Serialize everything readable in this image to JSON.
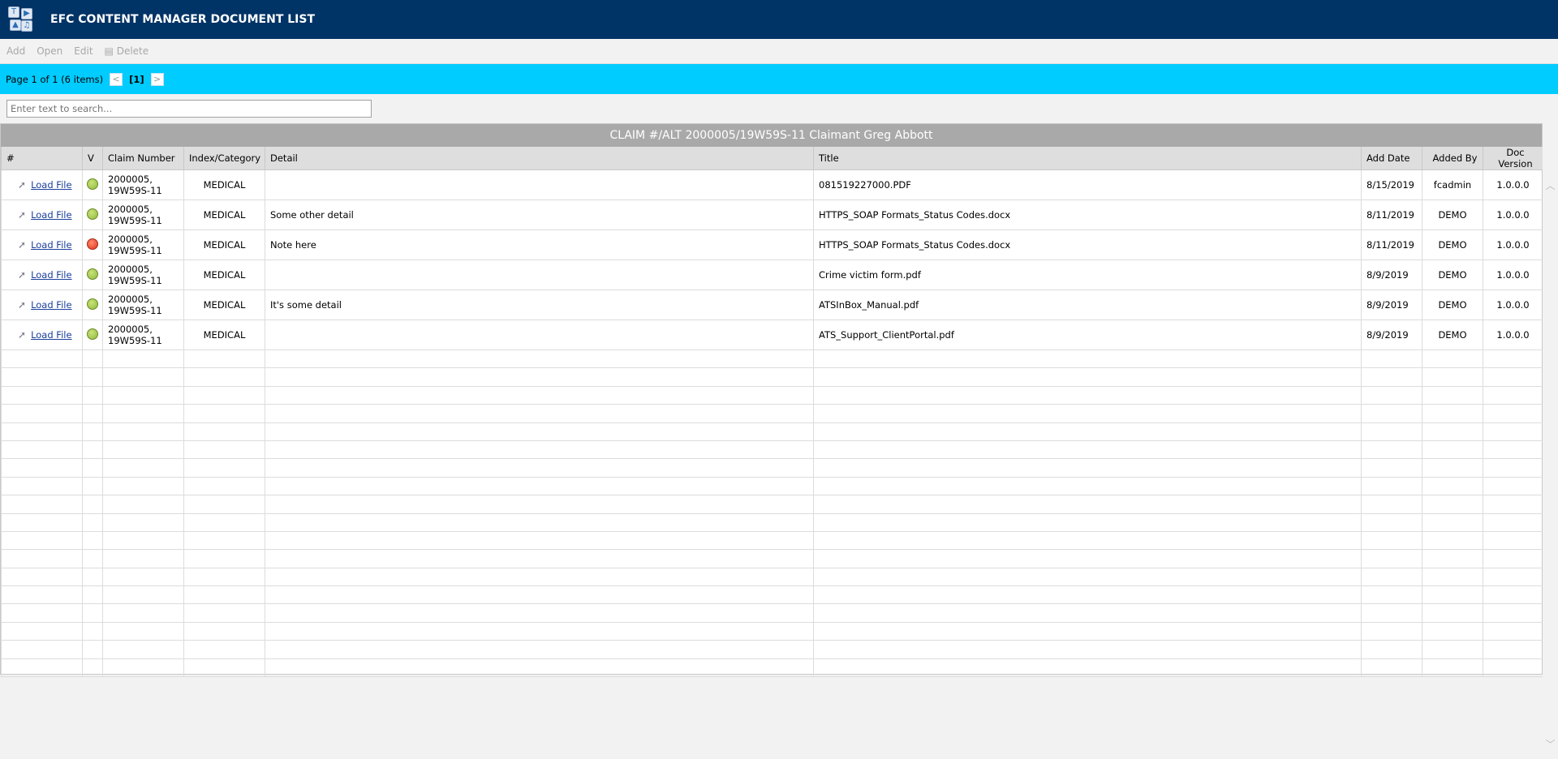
{
  "header": {
    "title": "EFC CONTENT MANAGER DOCUMENT LIST",
    "logo": "media-types-logo"
  },
  "toolbar": {
    "add": "Add",
    "open": "Open",
    "edit": "Edit",
    "delete": "Delete"
  },
  "pager": {
    "summary": "Page 1 of 1 (6 items)",
    "current": "[1]",
    "prev": "<",
    "next": ">"
  },
  "search": {
    "placeholder": "Enter text to search...",
    "value": ""
  },
  "grid": {
    "group": "CLAIM #/ALT 2000005/19W59S-11 Claimant Greg Abbott",
    "columns": [
      "#",
      "V",
      "Claim Number",
      "Index/Category",
      "Detail",
      "Title",
      "Add Date",
      "Added By",
      "Doc Version"
    ],
    "rows": [
      {
        "link": "Load File",
        "status": "green",
        "claim": "2000005,",
        "claim2": "19W59S-11",
        "category": "MEDICAL",
        "detail": "",
        "title": "081519227000.PDF",
        "date": "8/15/2019",
        "by": "fcadmin",
        "version": "1.0.0.0"
      },
      {
        "link": "Load File",
        "status": "green",
        "claim": "2000005,",
        "claim2": "19W59S-11",
        "category": "MEDICAL",
        "detail": "Some other detail",
        "title": "HTTPS_SOAP Formats_Status Codes.docx",
        "date": "8/11/2019",
        "by": "DEMO",
        "version": "1.0.0.0"
      },
      {
        "link": "Load File",
        "status": "red",
        "claim": "2000005,",
        "claim2": "19W59S-11",
        "category": "MEDICAL",
        "detail": "Note here",
        "title": "HTTPS_SOAP Formats_Status Codes.docx",
        "date": "8/11/2019",
        "by": "DEMO",
        "version": "1.0.0.0"
      },
      {
        "link": "Load File",
        "status": "green",
        "claim": "2000005,",
        "claim2": "19W59S-11",
        "category": "MEDICAL",
        "detail": "",
        "title": "Crime victim form.pdf",
        "date": "8/9/2019",
        "by": "DEMO",
        "version": "1.0.0.0"
      },
      {
        "link": "Load File",
        "status": "green",
        "claim": "2000005,",
        "claim2": "19W59S-11",
        "category": "MEDICAL",
        "detail": "It's some detail",
        "title": "ATSInBox_Manual.pdf",
        "date": "8/9/2019",
        "by": "DEMO",
        "version": "1.0.0.0"
      },
      {
        "link": "Load File",
        "status": "green",
        "claim": "2000005,",
        "claim2": "19W59S-11",
        "category": "MEDICAL",
        "detail": "",
        "title": "ATS_Support_ClientPortal.pdf",
        "date": "8/9/2019",
        "by": "DEMO",
        "version": "1.0.0.0"
      }
    ]
  },
  "colors": {
    "header": "#003366",
    "pager": "#00ccff",
    "group": "#a9a9a9",
    "green": "#8fb83a",
    "red": "#e0341a"
  }
}
